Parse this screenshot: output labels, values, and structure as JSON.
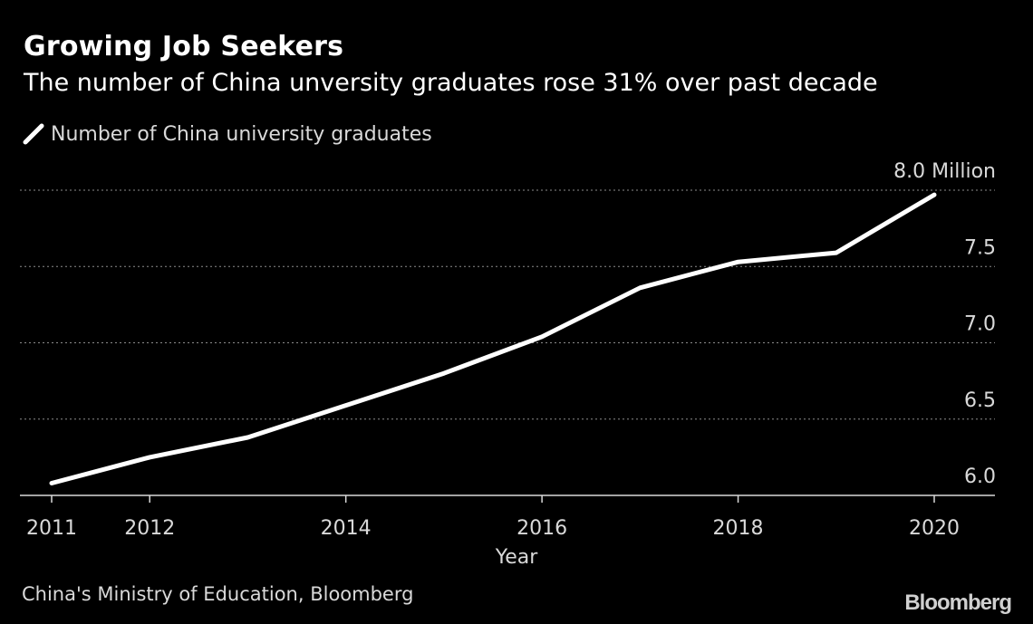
{
  "header": {
    "title": "Growing Job Seekers",
    "subtitle": "The number of China unversity graduates rose 31% over past decade"
  },
  "legend": {
    "label": "Number of China university graduates",
    "icon": "line-swatch-icon"
  },
  "footer": {
    "source": "China's Ministry of Education, Bloomberg",
    "brand": "Bloomberg"
  },
  "colors": {
    "background": "#000000",
    "series_line": "#ffffff",
    "grid": "#8c8c8c",
    "axis": "#d9d9d9",
    "text": "#d9d9d9"
  },
  "chart_data": {
    "type": "line",
    "title": "Growing Job Seekers",
    "subtitle": "The number of China unversity graduates rose 31% over past decade",
    "xlabel": "Year",
    "ylabel": "",
    "xlim": [
      2011,
      2020
    ],
    "ylim": [
      6.0,
      8.0
    ],
    "x_ticks": [
      2011,
      2012,
      2014,
      2016,
      2018,
      2020
    ],
    "y_ticks": [
      {
        "value": 6.0,
        "label": "6.0"
      },
      {
        "value": 6.5,
        "label": "6.5"
      },
      {
        "value": 7.0,
        "label": "7.0"
      },
      {
        "value": 7.5,
        "label": "7.5"
      },
      {
        "value": 8.0,
        "label": "8.0 Million"
      }
    ],
    "y_axis_side": "right",
    "grid": "horizontal dotted",
    "legend_position": "top-left",
    "series": [
      {
        "name": "Number of China university graduates",
        "x": [
          2011,
          2012,
          2013,
          2014,
          2015,
          2016,
          2017,
          2018,
          2019,
          2020
        ],
        "values": [
          6.08,
          6.25,
          6.38,
          6.59,
          6.8,
          7.04,
          7.36,
          7.53,
          7.59,
          7.97
        ]
      }
    ]
  }
}
